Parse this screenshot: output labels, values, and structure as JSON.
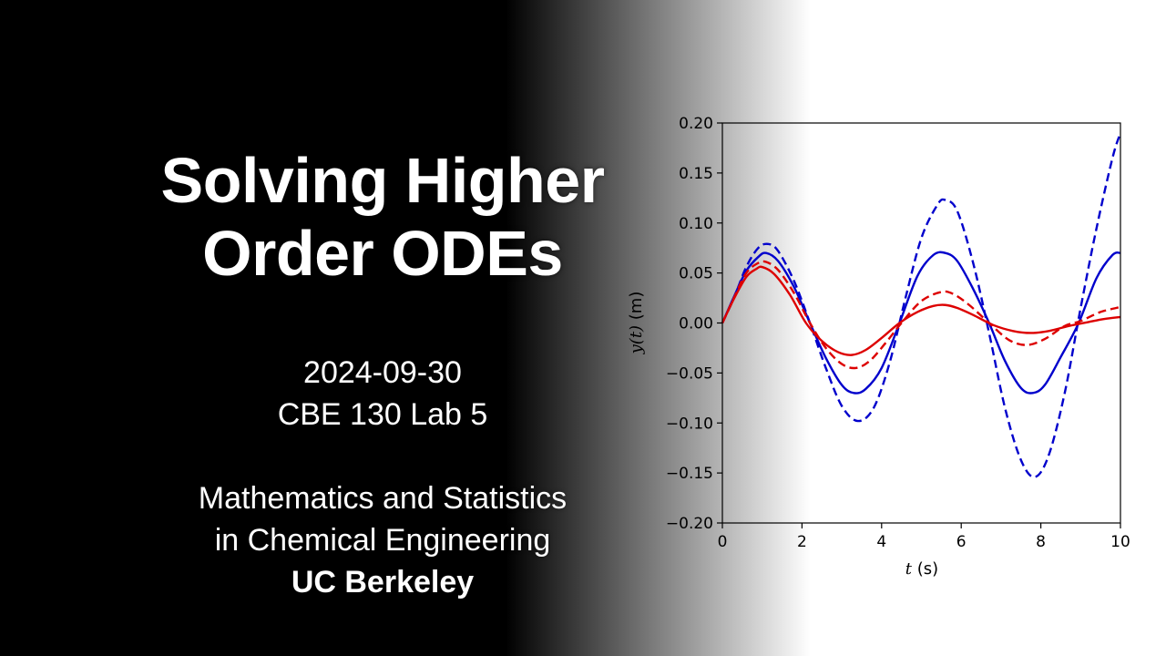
{
  "slide": {
    "title_lines": [
      "Solving Higher",
      "Order ODEs"
    ],
    "date": "2024-09-30",
    "course": "CBE 130 Lab 5",
    "subject_lines": [
      "Mathematics and Statistics",
      "in Chemical Engineering"
    ],
    "institution": "UC Berkeley"
  },
  "chart_data": {
    "type": "line",
    "xlabel_var": "t",
    "xlabel_unit": " (s)",
    "ylabel_var": "y(t)",
    "ylabel_unit": " (m)",
    "xlim": [
      0,
      10
    ],
    "ylim": [
      -0.2,
      0.2
    ],
    "x_ticks": [
      0,
      2,
      4,
      6,
      8,
      10
    ],
    "x_tick_labels": [
      "0",
      "2",
      "4",
      "6",
      "8",
      "10"
    ],
    "y_ticks": [
      -0.2,
      -0.15,
      -0.1,
      -0.05,
      0,
      0.05,
      0.1,
      0.15,
      0.2
    ],
    "y_tick_labels": [
      "−0.20",
      "−0.15",
      "−0.10",
      "−0.05",
      "0.00",
      "0.05",
      "0.10",
      "0.15",
      "0.20"
    ],
    "grid": false,
    "series": [
      {
        "color": "#0000cc",
        "dash": true,
        "points": [
          [
            0,
            0
          ],
          [
            0.3,
            0.026
          ],
          [
            0.6,
            0.056
          ],
          [
            0.9,
            0.075
          ],
          [
            1.15,
            0.079
          ],
          [
            1.4,
            0.072
          ],
          [
            1.8,
            0.042
          ],
          [
            2.2,
            0.0
          ],
          [
            2.6,
            -0.045
          ],
          [
            3.0,
            -0.083
          ],
          [
            3.4,
            -0.098
          ],
          [
            3.8,
            -0.085
          ],
          [
            4.2,
            -0.04
          ],
          [
            4.6,
            0.025
          ],
          [
            5.0,
            0.085
          ],
          [
            5.4,
            0.118
          ],
          [
            5.6,
            0.123
          ],
          [
            5.9,
            0.112
          ],
          [
            6.3,
            0.06
          ],
          [
            6.7,
            -0.01
          ],
          [
            7.1,
            -0.085
          ],
          [
            7.5,
            -0.137
          ],
          [
            7.85,
            -0.154
          ],
          [
            8.2,
            -0.132
          ],
          [
            8.6,
            -0.07
          ],
          [
            9.0,
            0.015
          ],
          [
            9.4,
            0.095
          ],
          [
            9.8,
            0.165
          ],
          [
            10.0,
            0.19
          ]
        ]
      },
      {
        "color": "#0000cc",
        "dash": false,
        "points": [
          [
            0,
            0
          ],
          [
            0.3,
            0.027
          ],
          [
            0.6,
            0.052
          ],
          [
            0.9,
            0.066
          ],
          [
            1.1,
            0.07
          ],
          [
            1.4,
            0.062
          ],
          [
            1.8,
            0.036
          ],
          [
            2.2,
            0.0
          ],
          [
            2.6,
            -0.035
          ],
          [
            3.0,
            -0.062
          ],
          [
            3.3,
            -0.07
          ],
          [
            3.6,
            -0.066
          ],
          [
            4.0,
            -0.045
          ],
          [
            4.45,
            0.0
          ],
          [
            4.9,
            0.047
          ],
          [
            5.3,
            0.068
          ],
          [
            5.6,
            0.07
          ],
          [
            5.9,
            0.062
          ],
          [
            6.3,
            0.034
          ],
          [
            6.7,
            0.0
          ],
          [
            7.1,
            -0.038
          ],
          [
            7.5,
            -0.065
          ],
          [
            7.8,
            -0.07
          ],
          [
            8.1,
            -0.062
          ],
          [
            8.5,
            -0.034
          ],
          [
            8.95,
            0.0
          ],
          [
            9.4,
            0.045
          ],
          [
            9.8,
            0.068
          ],
          [
            10.0,
            0.07
          ]
        ]
      },
      {
        "color": "#dd0000",
        "dash": true,
        "points": [
          [
            0,
            0
          ],
          [
            0.3,
            0.026
          ],
          [
            0.6,
            0.05
          ],
          [
            0.9,
            0.06
          ],
          [
            1.1,
            0.061
          ],
          [
            1.4,
            0.053
          ],
          [
            1.8,
            0.03
          ],
          [
            2.2,
            0.0
          ],
          [
            2.6,
            -0.025
          ],
          [
            3.0,
            -0.041
          ],
          [
            3.35,
            -0.045
          ],
          [
            3.7,
            -0.038
          ],
          [
            4.1,
            -0.02
          ],
          [
            4.5,
            0.0
          ],
          [
            5.0,
            0.022
          ],
          [
            5.5,
            0.031
          ],
          [
            5.8,
            0.029
          ],
          [
            6.2,
            0.018
          ],
          [
            6.7,
            0.0
          ],
          [
            7.2,
            -0.017
          ],
          [
            7.65,
            -0.022
          ],
          [
            8.1,
            -0.016
          ],
          [
            8.6,
            -0.003
          ],
          [
            9.0,
            0.002
          ],
          [
            9.5,
            0.011
          ],
          [
            10.0,
            0.016
          ]
        ]
      },
      {
        "color": "#dd0000",
        "dash": false,
        "points": [
          [
            0,
            0
          ],
          [
            0.3,
            0.025
          ],
          [
            0.6,
            0.046
          ],
          [
            0.85,
            0.054
          ],
          [
            1.0,
            0.056
          ],
          [
            1.3,
            0.049
          ],
          [
            1.7,
            0.028
          ],
          [
            2.1,
            0.0
          ],
          [
            2.5,
            -0.018
          ],
          [
            2.9,
            -0.029
          ],
          [
            3.25,
            -0.032
          ],
          [
            3.6,
            -0.027
          ],
          [
            4.0,
            -0.015
          ],
          [
            4.45,
            0.0
          ],
          [
            4.9,
            0.011
          ],
          [
            5.3,
            0.017
          ],
          [
            5.6,
            0.018
          ],
          [
            5.9,
            0.015
          ],
          [
            6.3,
            0.008
          ],
          [
            6.8,
            -0.002
          ],
          [
            7.3,
            -0.008
          ],
          [
            7.75,
            -0.01
          ],
          [
            8.2,
            -0.008
          ],
          [
            8.7,
            -0.003
          ],
          [
            9.2,
            0.001
          ],
          [
            9.6,
            0.004
          ],
          [
            10.0,
            0.006
          ]
        ]
      }
    ]
  }
}
